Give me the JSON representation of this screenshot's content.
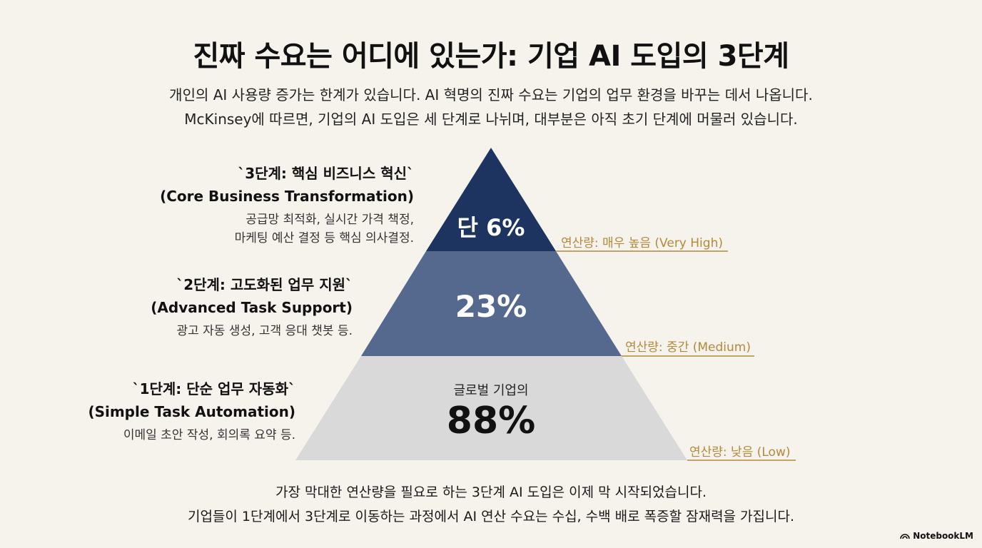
{
  "title": "진짜 수요는 어디에 있는가: 기업 AI 도입의 3단계",
  "subtitle": [
    "개인의 AI 사용량 증가는 한계가 있습니다. AI 혁명의 진짜 수요는 기업의 업무 환경을 바꾸는 데서 나옵니다.",
    "McKinsey에 따르면, 기업의 AI 도입은 세 단계로 나뉘며, 대부분은 아직 초기 단계에 머물러 있습니다."
  ],
  "stages": [
    {
      "title": "`3단계: 핵심 비즈니스 혁신`",
      "subtitle_en": "(Core Business Transformation)",
      "desc": [
        "공급망 최적화, 실시간 가격 책정,",
        "마케팅 예산 결정 등 핵심 의사결정."
      ],
      "value_label": "단 6%",
      "compute_label": "연산량: 매우 높음 (Very High)",
      "color": "#1e3460"
    },
    {
      "title": "`2단계: 고도화된 업무 지원`",
      "subtitle_en": "(Advanced Task Support)",
      "desc": [
        "광고 자동 생성, 고객 응대 챗봇 등."
      ],
      "value_label": "23%",
      "compute_label": "연산량: 중간 (Medium)",
      "color": "#55698e"
    },
    {
      "title": "`1단계: 단순 업무 자동화`",
      "subtitle_en": "(Simple Task Automation)",
      "desc": [
        "이메일 초안 작성, 회의록 요약 등."
      ],
      "value_prefix": "글로벌 기업의",
      "value_label": "88%",
      "compute_label": "연산량: 낮음 (Low)",
      "color": "#d9d9d9"
    }
  ],
  "bottom": [
    "가장 막대한 연산량을 필요로 하는 3단계 AI 도입은 이제 막 시작되었습니다.",
    "기업들이 1단계에서 3단계로 이동하는 과정에서 AI 연산 수요는 수십, 수백 배로 폭증할 잠재력을 가집니다."
  ],
  "brand": "NotebookLM",
  "colors": {
    "background": "#f6f2ec",
    "accent_gold": "#b38a3a"
  }
}
